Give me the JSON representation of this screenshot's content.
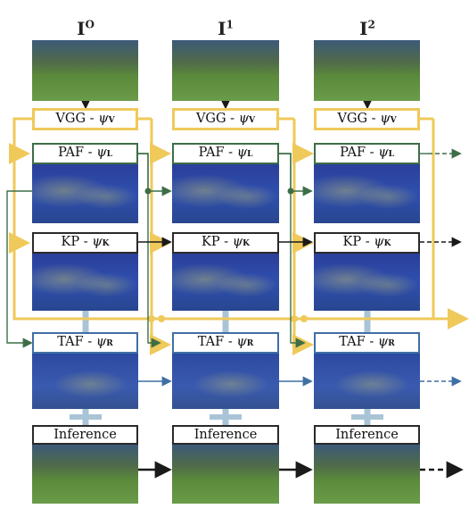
{
  "columns": [
    {
      "symbol": "I",
      "sup": "O"
    },
    {
      "symbol": "I",
      "sup": "1"
    },
    {
      "symbol": "I",
      "sup": "2"
    }
  ],
  "stages": {
    "vgg": {
      "prefix": "VGG - ",
      "psi": "ψ",
      "sub": "V"
    },
    "paf": {
      "prefix": "PAF - ",
      "psi": "ψ",
      "sub": "L"
    },
    "kp": {
      "prefix": "KP - ",
      "psi": "ψ",
      "sub": "K"
    },
    "taf": {
      "prefix": "TAF - ",
      "psi": "ψ",
      "sub": "R"
    },
    "inference": {
      "label": "Inference"
    }
  },
  "colors": {
    "vgg": "#efc95a",
    "paf": "#3d6e47",
    "kp": "#2a2a2a",
    "taf": "#3f6fa4",
    "inference": "#2a2a2a",
    "connector": "#a9c4d6"
  }
}
